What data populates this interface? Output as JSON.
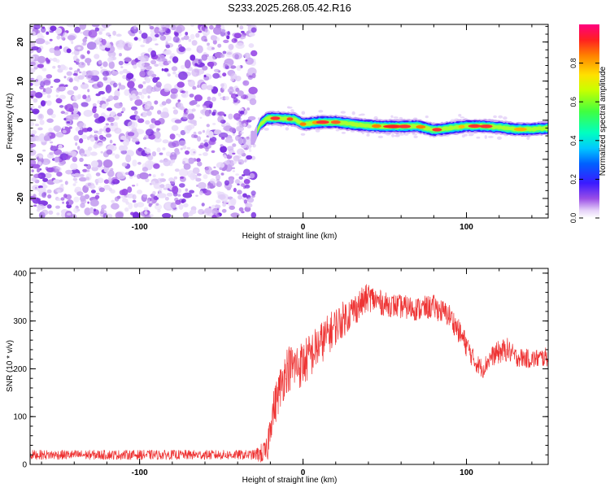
{
  "chart_data": [
    {
      "type": "heatmap",
      "title": "S233.2025.268.05.42.R16",
      "xlabel": "Height of straight line (km)",
      "ylabel": "Frequency (Hz)",
      "xlim": [
        -167,
        150
      ],
      "ylim": [
        -25,
        24.5
      ],
      "xticks": [
        -100,
        0,
        100
      ],
      "yticks": [
        -20,
        -10,
        0,
        10,
        20
      ],
      "xtick_labels": [
        "-100",
        "0",
        "100"
      ],
      "ytick_labels": [
        "-20",
        "-10",
        "0",
        "10",
        "20"
      ],
      "noise_region_x": [
        -167,
        -30
      ],
      "signal_ridge": {
        "x": [
          -30,
          -26,
          -22,
          -15,
          -5,
          0,
          10,
          20,
          30,
          40,
          50,
          60,
          70,
          75,
          80,
          85,
          90,
          100,
          110,
          120,
          130,
          140,
          150
        ],
        "freq": [
          -4.5,
          -1.0,
          0.5,
          0.5,
          0.2,
          -1.0,
          -0.5,
          -0.5,
          -1.0,
          -1.4,
          -1.6,
          -1.6,
          -1.5,
          -2.0,
          -2.5,
          -2.3,
          -2.0,
          -1.5,
          -1.5,
          -1.8,
          -2.3,
          -2.3,
          -2.0
        ]
      },
      "colorbar": {
        "label": "Normalized spectral amplitude",
        "range": [
          0.0,
          1.0
        ],
        "ticks": [
          0.0,
          0.2,
          0.4,
          0.6,
          0.8
        ],
        "tick_labels": [
          "0.0",
          "0.2",
          "0.4",
          "0.6",
          "0.8"
        ]
      }
    },
    {
      "type": "line",
      "xlabel": "Height of straight line (km)",
      "ylabel": "SNR (10 * v/v)",
      "xlim": [
        -167,
        150
      ],
      "ylim": [
        0,
        410
      ],
      "xticks": [
        -100,
        0,
        100
      ],
      "yticks": [
        0,
        100,
        200,
        300,
        400
      ],
      "xtick_labels": [
        "-100",
        "0",
        "100"
      ],
      "ytick_labels": [
        "0",
        "100",
        "200",
        "300",
        "400"
      ],
      "series": [
        {
          "name": "SNR",
          "color": "#ee3333",
          "envelope_x": [
            -167,
            -30,
            -22,
            -20,
            -15,
            -10,
            0,
            10,
            20,
            30,
            40,
            50,
            60,
            70,
            80,
            90,
            100,
            105,
            110,
            115,
            120,
            125,
            130,
            140,
            150
          ],
          "envelope_y": [
            20,
            20,
            25,
            90,
            150,
            200,
            210,
            250,
            290,
            320,
            350,
            335,
            330,
            325,
            330,
            310,
            250,
            215,
            200,
            225,
            235,
            240,
            225,
            220,
            225
          ],
          "noise_amplitude": [
            10,
            10,
            30,
            40,
            45,
            50,
            50,
            45,
            40,
            35,
            30,
            25,
            25,
            25,
            25,
            25,
            25,
            20,
            20,
            20,
            25,
            25,
            20,
            20,
            20
          ]
        }
      ]
    }
  ],
  "colors": {
    "noise_purple": "#9a4ee6",
    "series_red": "#ee3333"
  }
}
